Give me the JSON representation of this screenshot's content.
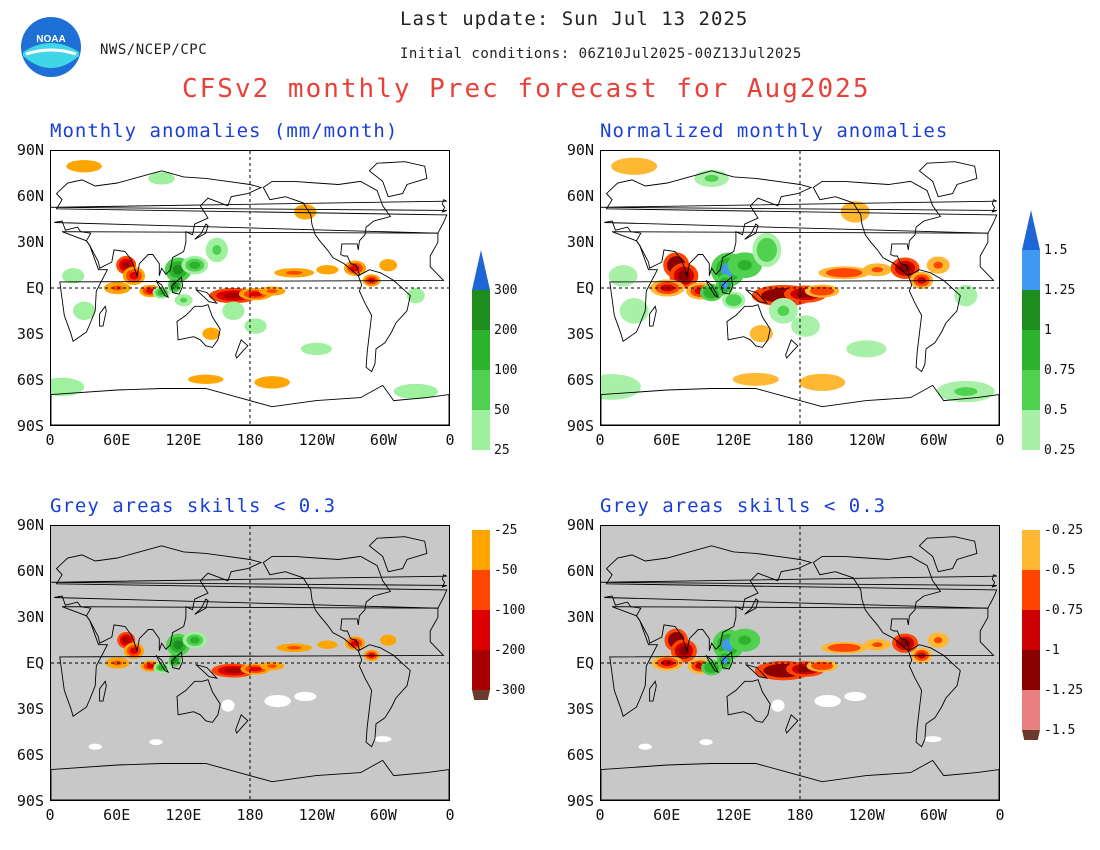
{
  "header": {
    "last_update": "Last update: Sun Jul 13 2025",
    "initial_conditions": "Initial conditions: 06Z10Jul2025-00Z13Jul2025",
    "agency": "NWS/NCEP/CPC",
    "title": "CFSv2 monthly Prec forecast for Aug2025",
    "logo_text": "NOAA"
  },
  "colors": {
    "title": "#e8413a",
    "panel_title": "#1a3fd6",
    "skill_mask": "#c8c8c8",
    "coast": "#000000"
  },
  "axes": {
    "lat_labels": [
      "90N",
      "60N",
      "30N",
      "EQ",
      "30S",
      "60S",
      "90S"
    ],
    "lon_labels": [
      "0",
      "60E",
      "120E",
      "180",
      "120W",
      "60W",
      "0"
    ]
  },
  "panels": [
    {
      "id": "anom",
      "title": "Monthly anomalies (mm/month)",
      "masked": false,
      "scale": "anom"
    },
    {
      "id": "norm",
      "title": "Normalized monthly anomalies",
      "masked": false,
      "scale": "norm"
    },
    {
      "id": "anom_skill",
      "title": "Grey areas skills < 0.3",
      "masked": true,
      "scale": "anom"
    },
    {
      "id": "norm_skill",
      "title": "Grey areas skills < 0.3",
      "masked": true,
      "scale": "norm"
    }
  ],
  "colorbars": {
    "anom": {
      "labels": [
        "300",
        "200",
        "100",
        "50",
        "25",
        "-25",
        "-50",
        "-100",
        "-200",
        "-300"
      ],
      "colors": [
        "#1d8e1d",
        "#2db22d",
        "#4fd04f",
        "#9ef09e",
        "#ffffff",
        "#ffa500",
        "#ff4500",
        "#dd0000",
        "#a80000",
        "#6b3a2a",
        "#1e66d6"
      ]
    },
    "norm": {
      "labels": [
        "1.5",
        "1.25",
        "1",
        "0.75",
        "0.5",
        "0.25",
        "-0.25",
        "-0.5",
        "-0.75",
        "-1",
        "-1.25",
        "-1.5"
      ],
      "colors": [
        "#1e66d6",
        "#3f99f0",
        "#1d8e1d",
        "#2db22d",
        "#4fd04f",
        "#a8f0a8",
        "#ffffff",
        "#ffb733",
        "#ff4500",
        "#cc0000",
        "#8b0000",
        "#e88080",
        "#6b3a2a"
      ]
    }
  }
}
